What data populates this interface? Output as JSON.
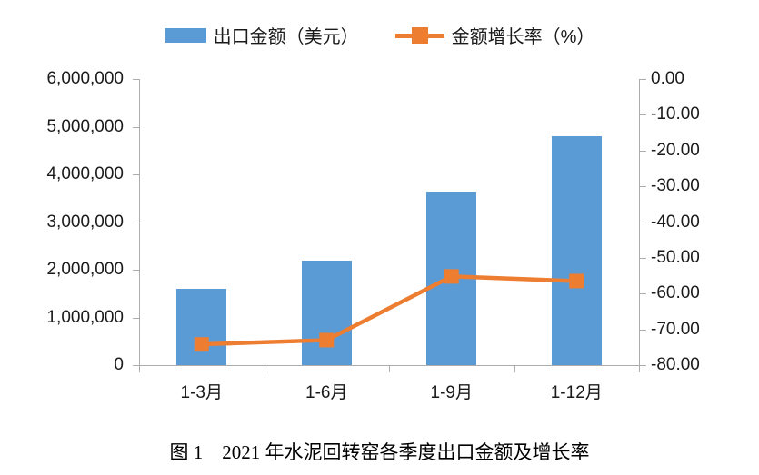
{
  "caption": "图 1　2021 年水泥回转窑各季度出口金额及增长率",
  "colors": {
    "bar": "#5B9BD5",
    "line": "#ED7D31",
    "axis": "#ACACAC",
    "text": "#1A1A1A"
  },
  "chart_data": {
    "type": "bar",
    "subtype": "combo-bar-line-dual-axis",
    "categories": [
      "1-3月",
      "1-6月",
      "1-9月",
      "1-12月"
    ],
    "series": [
      {
        "name": "出口金额（美元）",
        "type": "bar",
        "axis": "left",
        "color": "#5B9BD5",
        "values": [
          1600000,
          2200000,
          3640000,
          4800000
        ]
      },
      {
        "name": "金额增长率（%）",
        "type": "line",
        "axis": "right",
        "color": "#ED7D31",
        "marker": "square",
        "values": [
          -74.2,
          -73.0,
          -55.2,
          -56.5
        ]
      }
    ],
    "left_axis": {
      "min": 0,
      "max": 6000000,
      "step": 1000000,
      "tick_labels_top_to_bottom": [
        "6,000,000",
        "5,000,000",
        "4,000,000",
        "3,000,000",
        "2,000,000",
        "1,000,000",
        "0"
      ]
    },
    "right_axis": {
      "min": -80,
      "max": 0,
      "step": 10,
      "tick_labels_top_to_bottom": [
        "0.00",
        "-10.00",
        "-20.00",
        "-30.00",
        "-40.00",
        "-50.00",
        "-60.00",
        "-70.00",
        "-80.00"
      ]
    },
    "legend_position": "top",
    "gridlines": false,
    "title": "图 1　2021 年水泥回转窑各季度出口金额及增长率"
  }
}
